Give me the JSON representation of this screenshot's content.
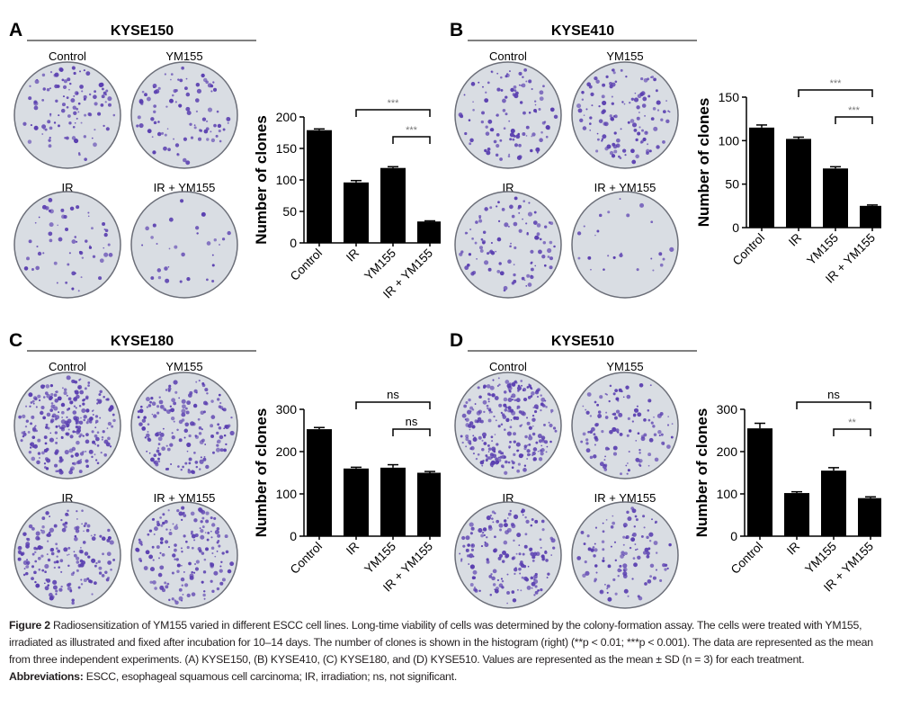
{
  "chart_data": [
    {
      "type": "bar",
      "panel": "A",
      "title": "KYSE150",
      "ylabel": "Number of clones",
      "categories": [
        "Control",
        "IR",
        "YM155",
        "IR + YM155"
      ],
      "values": [
        179,
        96,
        119,
        34
      ],
      "errors": [
        2,
        3,
        2,
        1
      ],
      "ylim": [
        0,
        200
      ],
      "yticks": [
        0,
        50,
        100,
        150,
        200
      ],
      "dish_labels": [
        "Control",
        "YM155",
        "IR",
        "IR + YM155"
      ],
      "brackets": [
        {
          "from": "IR",
          "to": "IR + YM155",
          "label": "***"
        },
        {
          "from": "YM155",
          "to": "IR + YM155",
          "label": "***"
        }
      ]
    },
    {
      "type": "bar",
      "panel": "B",
      "title": "KYSE410",
      "ylabel": "Number of clones",
      "categories": [
        "Control",
        "IR",
        "YM155",
        "IR + YM155"
      ],
      "values": [
        115,
        102,
        68,
        25
      ],
      "errors": [
        3,
        2,
        2,
        1
      ],
      "ylim": [
        0,
        150
      ],
      "yticks": [
        0,
        50,
        100,
        150
      ],
      "dish_labels": [
        "Control",
        "YM155",
        "IR",
        "IR + YM155"
      ],
      "brackets": [
        {
          "from": "IR",
          "to": "IR + YM155",
          "label": "***"
        },
        {
          "from": "YM155",
          "to": "IR + YM155",
          "label": "***"
        }
      ]
    },
    {
      "type": "bar",
      "panel": "C",
      "title": "KYSE180",
      "ylabel": "Number of clones",
      "categories": [
        "Control",
        "IR",
        "YM155",
        "IR + YM155"
      ],
      "values": [
        253,
        160,
        162,
        150
      ],
      "errors": [
        4,
        3,
        7,
        3
      ],
      "ylim": [
        0,
        300
      ],
      "yticks": [
        0,
        100,
        200,
        300
      ],
      "dish_labels": [
        "Control",
        "YM155",
        "IR",
        "IR + YM155"
      ],
      "brackets": [
        {
          "from": "IR",
          "to": "IR + YM155",
          "label": "ns"
        },
        {
          "from": "YM155",
          "to": "IR + YM155",
          "label": "ns"
        }
      ]
    },
    {
      "type": "bar",
      "panel": "D",
      "title": "KYSE510",
      "ylabel": "Number of clones",
      "categories": [
        "Control",
        "IR",
        "YM155",
        "IR + YM155"
      ],
      "values": [
        255,
        102,
        155,
        90
      ],
      "errors": [
        12,
        3,
        7,
        3
      ],
      "ylim": [
        0,
        300
      ],
      "yticks": [
        0,
        100,
        200,
        300
      ],
      "dish_labels": [
        "Control",
        "YM155",
        "IR",
        "IR + YM155"
      ],
      "brackets": [
        {
          "from": "IR",
          "to": "IR + YM155",
          "label": "ns"
        },
        {
          "from": "YM155",
          "to": "IR + YM155",
          "label": "**"
        }
      ]
    }
  ],
  "caption": {
    "fig_label": "Figure 2",
    "text": " Radiosensitization of YM155 varied in different ESCC cell lines. Long-time viability of cells was determined by the colony-formation assay. The cells were treated with YM155, irradiated as illustrated and fixed after incubation for 10–14 days. The number of clones is shown in the histogram (right) (**p < 0.01; ***p < 0.001). The data are represented as the mean from three independent experiments. (A) KYSE150, (B) KYSE410, (C) KYSE180, and (D) KYSE510. Values are represented as the mean ± SD (n = 3) for each treatment.",
    "abbr_label": "Abbreviations:",
    "abbr_text": " ESCC, esophageal squamous cell carcinoma; IR, irradiation; ns, not significant."
  },
  "colors": {
    "dish": "#d9dde3",
    "colony": "#5a3fb0",
    "bar": "#000000",
    "sig": "#777777"
  }
}
